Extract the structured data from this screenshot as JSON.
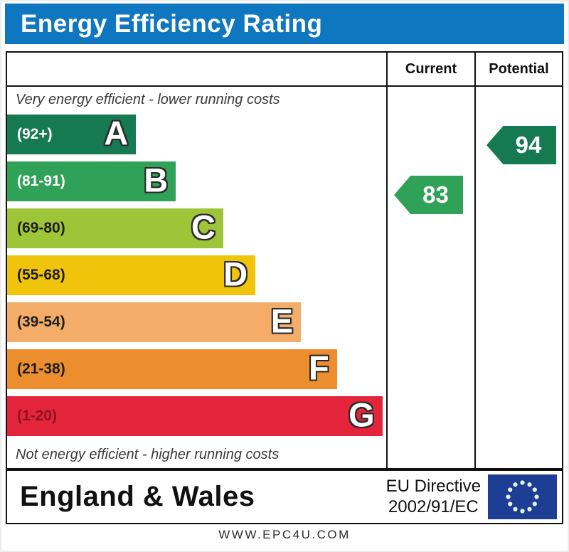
{
  "title": "Energy Efficiency Rating",
  "header": {
    "current": "Current",
    "potential": "Potential"
  },
  "notes": {
    "top": "Very energy efficient - lower running costs",
    "bottom": "Not energy efficient - higher running costs"
  },
  "bands": [
    {
      "letter": "A",
      "range": "(92+)",
      "color": "#157a52",
      "label_color": "#ffffff",
      "width_pct": 34.0
    },
    {
      "letter": "B",
      "range": "(81-91)",
      "color": "#30a257",
      "label_color": "#ffffff",
      "width_pct": 44.5
    },
    {
      "letter": "C",
      "range": "(69-80)",
      "color": "#9ec437",
      "label_color": "#1d1d1b",
      "width_pct": 57.0
    },
    {
      "letter": "D",
      "range": "(55-68)",
      "color": "#f0c40a",
      "label_color": "#1d1d1b",
      "width_pct": 65.5
    },
    {
      "letter": "E",
      "range": "(39-54)",
      "color": "#f4ac69",
      "label_color": "#1d1d1b",
      "width_pct": 77.5
    },
    {
      "letter": "F",
      "range": "(21-38)",
      "color": "#ec8e2e",
      "label_color": "#1d1d1b",
      "width_pct": 87.0
    },
    {
      "letter": "G",
      "range": "(1-20)",
      "color": "#e3243b",
      "label_color": "#8c1322",
      "width_pct": 99.0
    }
  ],
  "ratings": {
    "current": {
      "value": "83",
      "color": "#30a257"
    },
    "potential": {
      "value": "94",
      "color": "#157a52"
    }
  },
  "footer": {
    "region": "England & Wales",
    "directive_line1": "EU Directive",
    "directive_line2": "2002/91/EC",
    "flag_color": "#1d3e94",
    "flag_star_color": "#e6f2e2"
  },
  "website": "WWW.EPC4U.COM",
  "colors": {
    "title_bg": "#0f76c0",
    "title_text": "#ffffff",
    "border": "#111111"
  },
  "chart_data": {
    "type": "bar",
    "orientation": "horizontal",
    "title": "Energy Efficiency Rating",
    "categories": [
      "A",
      "B",
      "C",
      "D",
      "E",
      "F",
      "G"
    ],
    "band_score_ranges": [
      "92+",
      "81-91",
      "69-80",
      "55-68",
      "39-54",
      "21-38",
      "1-20"
    ],
    "bar_lengths_pct_of_width": [
      34.0,
      44.5,
      57.0,
      65.5,
      77.5,
      87.0,
      99.0
    ],
    "band_colors": [
      "#157a52",
      "#30a257",
      "#9ec437",
      "#f0c40a",
      "#f4ac69",
      "#ec8e2e",
      "#e3243b"
    ],
    "markers": [
      {
        "name": "Current",
        "value": 83,
        "band": "B"
      },
      {
        "name": "Potential",
        "value": 94,
        "band": "A"
      }
    ],
    "top_axis_note": "Very energy efficient - lower running costs",
    "bottom_axis_note": "Not energy efficient - higher running costs",
    "footer_region": "England & Wales",
    "footer_directive": "EU Directive 2002/91/EC"
  }
}
